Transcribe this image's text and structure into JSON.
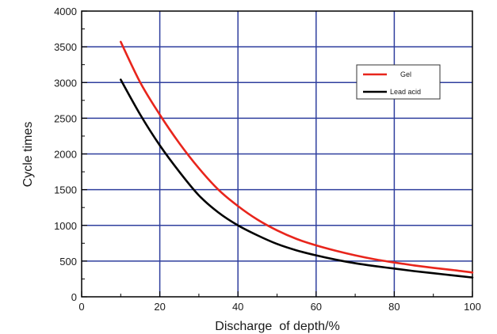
{
  "chart_data": {
    "type": "line",
    "title": "",
    "xlabel": "Discharge  of depth/%",
    "ylabel": "Cycle times",
    "xlim": [
      0,
      100
    ],
    "ylim": [
      0,
      4000
    ],
    "x_ticks": [
      0,
      20,
      40,
      60,
      80,
      100
    ],
    "x_tick_labels": [
      "0",
      "20",
      "40",
      "60",
      "80",
      "100"
    ],
    "y_ticks": [
      0,
      500,
      1000,
      1500,
      2000,
      2500,
      3000,
      3500,
      4000
    ],
    "y_tick_labels": [
      "0",
      "500",
      "1000",
      "1500",
      "2000",
      "2500",
      "3000",
      "3500",
      "4000"
    ],
    "grid": true,
    "legend_position": "top-right",
    "series": [
      {
        "name": "Gel",
        "color": "#e8251c",
        "x": [
          10,
          15,
          20,
          25,
          30,
          35,
          40,
          45,
          50,
          55,
          60,
          65,
          70,
          75,
          80,
          85,
          90,
          95,
          100
        ],
        "y": [
          3570,
          3000,
          2550,
          2150,
          1800,
          1500,
          1270,
          1080,
          930,
          810,
          720,
          645,
          580,
          525,
          480,
          440,
          405,
          375,
          340
        ]
      },
      {
        "name": "Lead acid",
        "color": "#000000",
        "x": [
          10,
          15,
          20,
          25,
          30,
          35,
          40,
          45,
          50,
          55,
          60,
          65,
          70,
          75,
          80,
          85,
          90,
          95,
          100
        ],
        "y": [
          3040,
          2550,
          2120,
          1750,
          1420,
          1180,
          1000,
          860,
          740,
          650,
          580,
          520,
          470,
          430,
          395,
          360,
          330,
          300,
          270
        ]
      }
    ]
  }
}
